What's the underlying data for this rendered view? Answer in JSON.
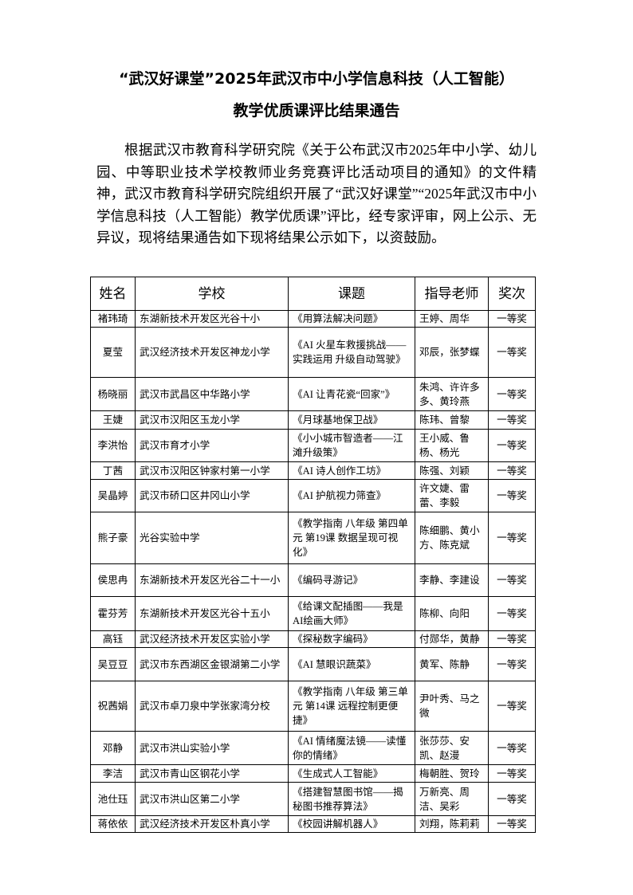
{
  "title": {
    "line1": "“武汉好课堂”2025年武汉市中小学信息科技（人工智能）",
    "line2": "教学优质课评比结果通告"
  },
  "paragraph": "根据武汉市教育科学研究院《关于公布武汉市2025年中小学、幼儿园、中等职业技术学校教师业务竞赛评比活动项目的通知》的文件精神，武汉市教育科学研究院组织开展了“武汉好课堂”“2025年武汉市中小学信息科技（人工智能）教学优质课”评比，经专家评审，网上公示、无异议，现将结果通告如下现将结果公示如下，以资鼓励。",
  "table": {
    "headers": [
      "姓名",
      "学校",
      "课题",
      "指导老师",
      "奖次"
    ],
    "rows": [
      [
        "褚玮琦",
        "东湖新技术开发区光谷十小",
        "《用算法解决问题》",
        "王婷、周华",
        "一等奖"
      ],
      [
        "夏莹",
        "武汉经济技术开发区神龙小学",
        "《AI 火星车救援挑战——实践运用 升级自动驾驶》",
        "邓辰，张梦蝶",
        "一等奖"
      ],
      [
        "杨晓丽",
        "武汉市武昌区中华路小学",
        "《AI 让青花瓷“回家”》",
        "朱鸿、许许多多、黄玲燕",
        "一等奖"
      ],
      [
        "王婕",
        "武汉市汉阳区玉龙小学",
        "《月球基地保卫战》",
        "陈玮、曾黎",
        "一等奖"
      ],
      [
        "李洪怡",
        "武汉市育才小学",
        "《小小城市智造者——江滩升级策》",
        "王小威、鲁杨、杨光",
        "一等奖"
      ],
      [
        "丁茜",
        "武汉市汉阳区钟家村第一小学",
        "《AI 诗人创作工坊》",
        "陈强、刘颖",
        "一等奖"
      ],
      [
        "吴晶婷",
        "武汉市硚口区井冈山小学",
        "《AI 护航视力筛查》",
        "许文婕、雷蕾、李毅",
        "一等奖"
      ],
      [
        "熊子豪",
        "光谷实验中学",
        "《教学指南 八年级 第四单元 第19课 数据呈现可视化》",
        "陈细鹏、黄小方、陈克斌",
        "一等奖"
      ],
      [
        "侯思冉",
        "东湖新技术开发区光谷二十一小",
        "《编码寻游记》",
        "李静、李建设",
        "一等奖"
      ],
      [
        "霍芬芳",
        "东湖新技术开发区光谷十五小",
        "《给课文配插图——我是AI绘画大师》",
        "陈柳、向阳",
        "一等奖"
      ],
      [
        "高钰",
        "武汉经济技术开发区实验小学",
        "《探秘数字编码》",
        "付郧华，黄静",
        "一等奖"
      ],
      [
        "吴豆豆",
        "武汉市东西湖区金银湖第二小学",
        "《AI 慧眼识蔬菜》",
        "黄军、陈静",
        "一等奖"
      ],
      [
        "祝茜娟",
        "武汉市卓刀泉中学张家湾分校",
        "《教学指南 八年级 第三单元 第14课 远程控制更便捷》",
        "尹叶秀、马之微",
        "一等奖"
      ],
      [
        "邓静",
        "武汉市洪山实验小学",
        "《AI 情绪魔法镜——读懂你的情绪》",
        "张莎莎、安凯、赵漫",
        "一等奖"
      ],
      [
        "李洁",
        "武汉市青山区钢花小学",
        "《生成式人工智能》",
        "梅朝胜、贺玲",
        "一等奖"
      ],
      [
        "池仕珏",
        "武汉市洪山区第二小学",
        "《搭建智慧图书馆——揭秘图书推荐算法》",
        "万新亮、周洁、吴彩",
        "一等奖"
      ],
      [
        "蒋依依",
        "武汉经济技术开发区朴真小学",
        "《校园讲解机器人》",
        "刘翔，陈莉莉",
        "一等奖"
      ]
    ]
  }
}
